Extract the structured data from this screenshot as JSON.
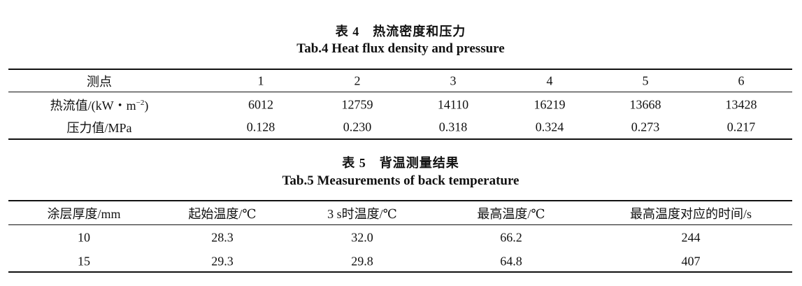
{
  "tables": [
    {
      "caption_cn": "表 4　热流密度和压力",
      "caption_en": "Tab.4 Heat flux density and pressure",
      "header": [
        "测点",
        "1",
        "2",
        "3",
        "4",
        "5",
        "6"
      ],
      "rows": [
        [
          {
            "text": "热流值/(kW・m",
            "sup": "−2",
            "after": ")"
          },
          "6012",
          "12759",
          "14110",
          "16219",
          "13668",
          "13428"
        ],
        [
          "压力值/MPa",
          "0.128",
          "0.230",
          "0.318",
          "0.324",
          "0.273",
          "0.217"
        ]
      ]
    },
    {
      "caption_cn": "表 5　背温测量结果",
      "caption_en": "Tab.5 Measurements of back temperature",
      "header": [
        "涂层厚度/mm",
        "起始温度/℃",
        "3 s时温度/℃",
        "最高温度/℃",
        "最高温度对应的时间/s"
      ],
      "rows": [
        [
          "10",
          "28.3",
          "32.0",
          "66.2",
          "244"
        ],
        [
          "15",
          "29.3",
          "29.8",
          "64.8",
          "407"
        ]
      ]
    }
  ]
}
